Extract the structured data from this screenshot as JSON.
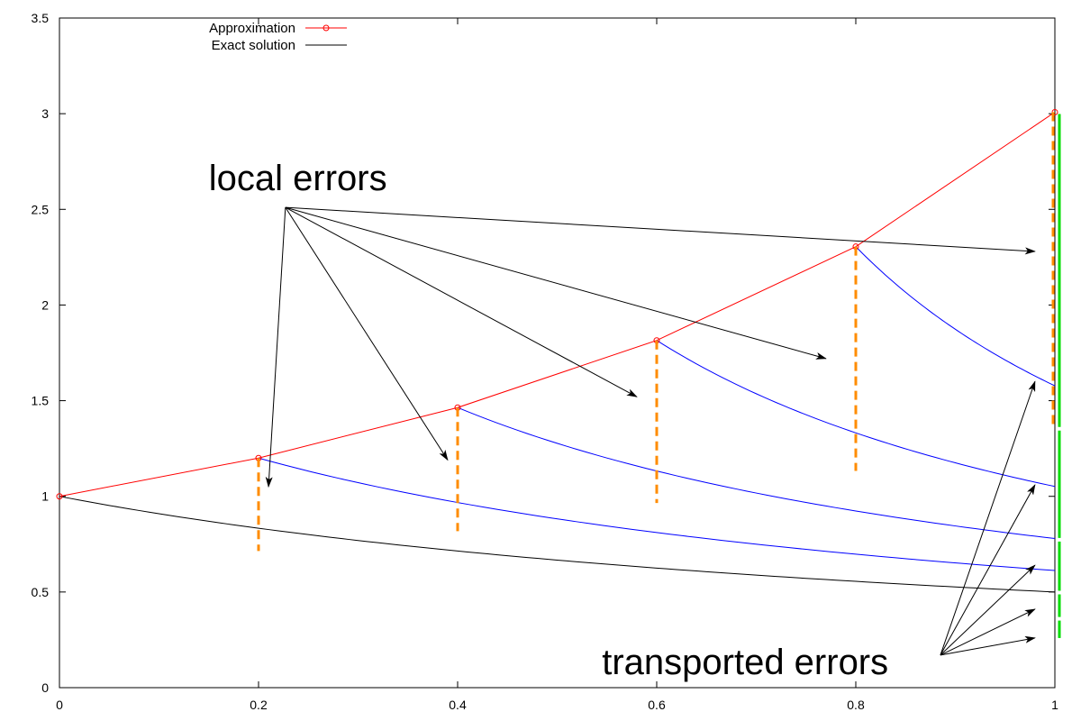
{
  "chart_data": {
    "type": "line",
    "title": "",
    "xlabel": "",
    "ylabel": "",
    "xlim": [
      0,
      1
    ],
    "ylim": [
      0,
      3.5
    ],
    "x_ticks": [
      0,
      0.2,
      0.4,
      0.6,
      0.8,
      1
    ],
    "x_tick_labels": [
      "0",
      "0.2",
      "0.4",
      "0.6",
      "0.8",
      "1"
    ],
    "y_ticks": [
      0,
      0.5,
      1,
      1.5,
      2,
      2.5,
      3,
      3.5
    ],
    "y_tick_labels": [
      "0",
      "0.5",
      "1",
      "1.5",
      "2",
      "2.5",
      "3",
      "3.5"
    ],
    "grid": false,
    "legend_position": "top-left",
    "legend": [
      {
        "label": "Approximation",
        "color": "#ff0000",
        "marker": "circle"
      },
      {
        "label": "Exact solution",
        "color": "#000000",
        "marker": "none"
      }
    ],
    "series": [
      {
        "name": "Approximation",
        "color": "#ff0000",
        "x": [
          0,
          0.2,
          0.4,
          0.6,
          0.8,
          1.0
        ],
        "y": [
          1.0,
          1.2,
          1.464,
          1.815,
          2.305,
          3.008
        ]
      },
      {
        "name": "Exact solution",
        "color": "#000000",
        "x": [
          0,
          0.1,
          0.2,
          0.3,
          0.4,
          0.5,
          0.6,
          0.7,
          0.8,
          0.9,
          1.0
        ],
        "y": [
          1.0,
          0.833,
          0.714,
          0.625,
          0.556,
          0.5,
          0.455,
          0.417,
          0.385,
          0.357,
          0.333
        ]
      }
    ],
    "local_solutions": {
      "color": "#0000ff",
      "curves": [
        {
          "x0": 0.2,
          "y0": 1.2
        },
        {
          "x0": 0.4,
          "y0": 1.464
        },
        {
          "x0": 0.6,
          "y0": 1.815
        },
        {
          "x0": 0.8,
          "y0": 2.305
        }
      ]
    },
    "local_error_segments": {
      "color": "#ff8c00",
      "segments": [
        {
          "x": 0.2,
          "y_top": 1.2,
          "y_bottom": 0.714
        },
        {
          "x": 0.4,
          "y_top": 1.464,
          "y_bottom": 0.818
        },
        {
          "x": 0.6,
          "y_top": 1.815,
          "y_bottom": 0.965
        },
        {
          "x": 0.8,
          "y_top": 2.305,
          "y_bottom": 1.133
        },
        {
          "x": 1.0,
          "y_top": 3.008,
          "y_bottom": 1.353
        }
      ]
    },
    "transported_error_segments": {
      "color": "#00dd00",
      "segments": [
        {
          "y_top": 3.008,
          "y_bottom": 1.353
        },
        {
          "y_top": 1.353,
          "y_bottom": 0.773
        },
        {
          "y_top": 0.773,
          "y_bottom": 0.497
        },
        {
          "y_top": 0.497,
          "y_bottom": 0.36
        },
        {
          "y_top": 0.36,
          "y_bottom": 0.25
        }
      ]
    },
    "annotations": [
      {
        "text": "local errors",
        "text_pos": [
          0.15,
          2.6
        ],
        "arrow_origin": [
          0.227,
          2.51
        ],
        "arrow_targets": [
          [
            0.21,
            1.05
          ],
          [
            0.39,
            1.19
          ],
          [
            0.58,
            1.52
          ],
          [
            0.77,
            1.72
          ],
          [
            0.98,
            2.28
          ]
        ]
      },
      {
        "text": "transported errors",
        "text_pos": [
          0.545,
          0.07
        ],
        "arrow_origin": [
          0.885,
          0.17
        ],
        "arrow_targets": [
          [
            0.98,
            0.26
          ],
          [
            0.98,
            0.41
          ],
          [
            0.98,
            0.64
          ],
          [
            0.98,
            1.06
          ],
          [
            0.98,
            1.6
          ]
        ]
      }
    ]
  }
}
